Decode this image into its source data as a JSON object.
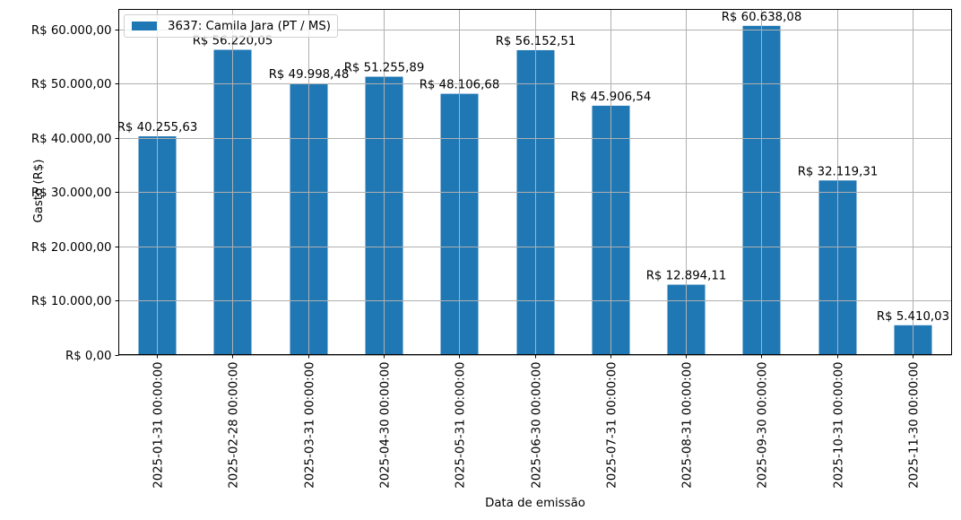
{
  "chart_data": {
    "type": "bar",
    "title": "",
    "xlabel": "Data de emissão",
    "ylabel": "Gasto (R$)",
    "categories": [
      "2025-01-31 00:00:00",
      "2025-02-28 00:00:00",
      "2025-03-31 00:00:00",
      "2025-04-30 00:00:00",
      "2025-05-31 00:00:00",
      "2025-06-30 00:00:00",
      "2025-07-31 00:00:00",
      "2025-08-31 00:00:00",
      "2025-09-30 00:00:00",
      "2025-10-31 00:00:00",
      "2025-11-30 00:00:00"
    ],
    "series": [
      {
        "name": "3637: Camila Jara (PT / MS)",
        "color": "#1f77b4",
        "values": [
          40255.63,
          56220.05,
          49998.48,
          51255.89,
          48106.68,
          56152.51,
          45906.54,
          12894.11,
          60638.08,
          32119.31,
          5410.03
        ],
        "data_labels": [
          "R$ 40.255,63",
          "R$ 56.220,05",
          "R$ 49.998,48",
          "R$ 51.255,89",
          "R$ 48.106,68",
          "R$ 56.152,51",
          "R$ 45.906,54",
          "R$ 12.894,11",
          "R$ 60.638,08",
          "R$ 32.119,31",
          "R$ 5.410,03"
        ]
      }
    ],
    "yticks": [
      0,
      10000,
      20000,
      30000,
      40000,
      50000,
      60000
    ],
    "ytick_labels": [
      "R$ 0,00",
      "R$ 10.000,00",
      "R$ 20.000,00",
      "R$ 30.000,00",
      "R$ 40.000,00",
      "R$ 50.000,00",
      "R$ 60.000,00"
    ],
    "ylim": [
      0,
      63670
    ],
    "grid": true,
    "legend_position": "upper left"
  }
}
